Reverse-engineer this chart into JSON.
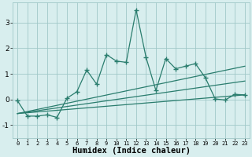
{
  "title": "",
  "xlabel": "Humidex (Indice chaleur)",
  "x_data": [
    0,
    1,
    2,
    3,
    4,
    5,
    6,
    7,
    8,
    9,
    10,
    11,
    12,
    13,
    14,
    15,
    16,
    17,
    18,
    19,
    20,
    21,
    22,
    23
  ],
  "y_scatter": [
    -0.05,
    -0.65,
    -0.65,
    -0.6,
    -0.7,
    0.05,
    0.3,
    1.15,
    0.6,
    1.75,
    1.5,
    1.45,
    3.5,
    1.65,
    0.35,
    1.6,
    1.2,
    1.3,
    1.4,
    0.85,
    0.02,
    -0.02,
    0.2,
    0.18
  ],
  "line1_x": [
    0,
    23
  ],
  "line1_y": [
    -0.55,
    1.3
  ],
  "line2_x": [
    0,
    23
  ],
  "line2_y": [
    -0.55,
    0.72
  ],
  "line3_x": [
    0,
    23
  ],
  "line3_y": [
    -0.55,
    0.18
  ],
  "color": "#2a7d6e",
  "bg_color": "#d8eeee",
  "grid_color": "#a0c8c8",
  "ylim": [
    -1.5,
    3.8
  ],
  "xlim": [
    -0.5,
    23.5
  ],
  "yticks": [
    -1,
    0,
    1,
    2,
    3
  ],
  "xticks": [
    0,
    1,
    2,
    3,
    4,
    5,
    6,
    7,
    8,
    9,
    10,
    11,
    12,
    13,
    14,
    15,
    16,
    17,
    18,
    19,
    20,
    21,
    22,
    23
  ]
}
